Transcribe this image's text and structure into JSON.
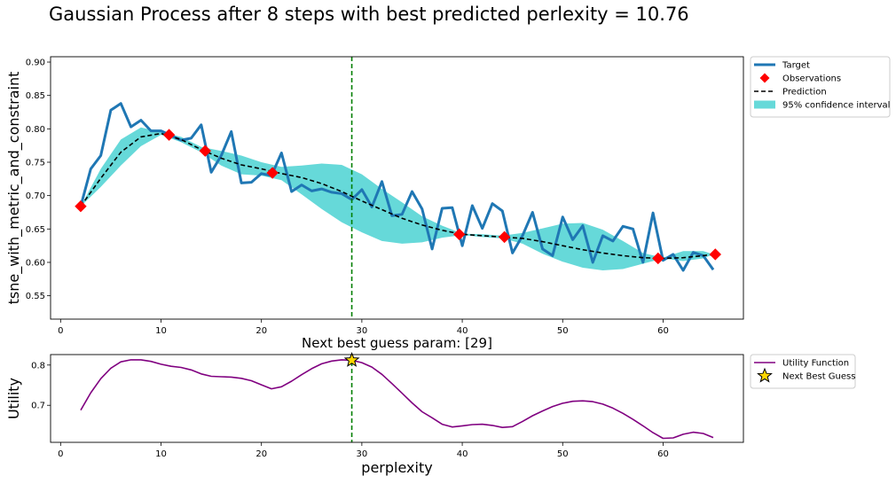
{
  "figure": {
    "title": "Gaussian Process after 8 steps with best predicted perlexity = 10.76"
  },
  "chart_data": [
    {
      "type": "line",
      "id": "gp-plot",
      "xlabel": "",
      "ylabel": "tsne_with_metric_and_constraint",
      "xlim": [
        -1,
        68
      ],
      "ylim": [
        0.515,
        0.908
      ],
      "xticks": [
        0,
        10,
        20,
        30,
        40,
        50,
        60
      ],
      "yticks": [
        0.55,
        0.6,
        0.65,
        0.7,
        0.75,
        0.8,
        0.85,
        0.9
      ],
      "legend_position": "outside-upper-right",
      "next_guess_x": 29,
      "series": [
        {
          "name": "Target",
          "kind": "line",
          "color": "#1f77b4",
          "x": [
            2,
            3,
            4,
            5,
            6,
            7,
            8,
            9,
            10,
            11,
            12,
            13,
            14,
            15,
            16,
            17,
            18,
            19,
            20,
            21,
            22,
            23,
            24,
            25,
            26,
            27,
            28,
            29,
            30,
            31,
            32,
            33,
            34,
            35,
            36,
            37,
            38,
            39,
            40,
            41,
            42,
            43,
            44,
            45,
            46,
            47,
            48,
            49,
            50,
            51,
            52,
            53,
            54,
            55,
            56,
            57,
            58,
            59,
            60,
            61,
            62,
            63,
            64,
            65
          ],
          "y": [
            0.684,
            0.74,
            0.76,
            0.828,
            0.838,
            0.803,
            0.813,
            0.797,
            0.797,
            0.79,
            0.783,
            0.786,
            0.806,
            0.735,
            0.76,
            0.796,
            0.719,
            0.72,
            0.733,
            0.73,
            0.764,
            0.706,
            0.716,
            0.707,
            0.71,
            0.705,
            0.703,
            0.694,
            0.709,
            0.683,
            0.721,
            0.67,
            0.672,
            0.706,
            0.68,
            0.62,
            0.681,
            0.682,
            0.625,
            0.685,
            0.651,
            0.688,
            0.677,
            0.614,
            0.64,
            0.675,
            0.62,
            0.61,
            0.668,
            0.634,
            0.655,
            0.6,
            0.64,
            0.632,
            0.654,
            0.65,
            0.6,
            0.674,
            0.603,
            0.612,
            0.588,
            0.615,
            0.61,
            0.589
          ]
        },
        {
          "name": "Observations",
          "kind": "marker",
          "marker": "diamond",
          "color": "#ff0000",
          "x": [
            2,
            10.8,
            14.4,
            21.1,
            39.7,
            44.2,
            59.5,
            65.2
          ],
          "y": [
            0.684,
            0.791,
            0.767,
            0.734,
            0.642,
            0.638,
            0.606,
            0.612
          ]
        },
        {
          "name": "Prediction",
          "kind": "dashed-line",
          "color": "#000000",
          "x": [
            2,
            4,
            6,
            8,
            10,
            12,
            14,
            16,
            18,
            20,
            22,
            24,
            26,
            28,
            30,
            32,
            34,
            36,
            38,
            40,
            42,
            44,
            46,
            48,
            50,
            52,
            54,
            56,
            58,
            60,
            62,
            64,
            65
          ],
          "y": [
            0.684,
            0.726,
            0.765,
            0.788,
            0.793,
            0.784,
            0.769,
            0.756,
            0.746,
            0.74,
            0.733,
            0.727,
            0.718,
            0.706,
            0.692,
            0.679,
            0.666,
            0.656,
            0.648,
            0.642,
            0.64,
            0.638,
            0.636,
            0.631,
            0.625,
            0.619,
            0.614,
            0.61,
            0.607,
            0.606,
            0.607,
            0.61,
            0.612
          ]
        },
        {
          "name": "95% confidence interval",
          "kind": "band",
          "color": "#66d9d9",
          "x": [
            2,
            4,
            6,
            8,
            10,
            12,
            14,
            16,
            18,
            20,
            22,
            24,
            26,
            28,
            30,
            32,
            34,
            36,
            38,
            40,
            42,
            44,
            46,
            48,
            50,
            52,
            54,
            56,
            58,
            60,
            62,
            64,
            65
          ],
          "lower": [
            0.684,
            0.713,
            0.745,
            0.774,
            0.791,
            0.78,
            0.765,
            0.745,
            0.732,
            0.73,
            0.723,
            0.702,
            0.68,
            0.66,
            0.645,
            0.632,
            0.628,
            0.63,
            0.637,
            0.641,
            0.638,
            0.636,
            0.628,
            0.613,
            0.601,
            0.592,
            0.588,
            0.59,
            0.598,
            0.606,
            0.602,
            0.606,
            0.612
          ],
          "upper": [
            0.684,
            0.74,
            0.784,
            0.802,
            0.795,
            0.788,
            0.773,
            0.767,
            0.76,
            0.75,
            0.743,
            0.745,
            0.748,
            0.746,
            0.732,
            0.71,
            0.69,
            0.669,
            0.655,
            0.643,
            0.642,
            0.64,
            0.644,
            0.651,
            0.658,
            0.659,
            0.649,
            0.632,
            0.614,
            0.607,
            0.617,
            0.617,
            0.612
          ]
        }
      ]
    },
    {
      "type": "line",
      "id": "utility-plot",
      "title": "Next best guess param: [29]",
      "xlabel": "perplexity",
      "ylabel": "Utility",
      "xlim": [
        -1,
        68
      ],
      "ylim": [
        0.608,
        0.826
      ],
      "xticks": [
        0,
        10,
        20,
        30,
        40,
        50,
        60
      ],
      "yticks": [
        0.7,
        0.8
      ],
      "legend_position": "outside-upper-right",
      "next_guess_x": 29,
      "series": [
        {
          "name": "Utility Function",
          "kind": "line",
          "color": "#800080",
          "x": [
            2,
            3,
            4,
            5,
            6,
            7,
            8,
            9,
            10,
            11,
            12,
            13,
            14,
            15,
            16,
            17,
            18,
            19,
            20,
            21,
            22,
            23,
            24,
            25,
            26,
            27,
            28,
            29,
            30,
            31,
            32,
            33,
            34,
            35,
            36,
            37,
            38,
            39,
            40,
            41,
            42,
            43,
            44,
            45,
            46,
            47,
            48,
            49,
            50,
            51,
            52,
            53,
            54,
            55,
            56,
            57,
            58,
            59,
            60,
            61,
            62,
            63,
            64,
            65
          ],
          "y": [
            0.688,
            0.731,
            0.766,
            0.792,
            0.808,
            0.813,
            0.813,
            0.809,
            0.802,
            0.797,
            0.794,
            0.788,
            0.778,
            0.772,
            0.771,
            0.77,
            0.767,
            0.761,
            0.751,
            0.741,
            0.746,
            0.76,
            0.776,
            0.791,
            0.803,
            0.81,
            0.813,
            0.812,
            0.806,
            0.795,
            0.777,
            0.754,
            0.73,
            0.706,
            0.684,
            0.669,
            0.653,
            0.646,
            0.649,
            0.652,
            0.653,
            0.65,
            0.645,
            0.647,
            0.66,
            0.674,
            0.686,
            0.697,
            0.705,
            0.71,
            0.711,
            0.709,
            0.703,
            0.693,
            0.68,
            0.665,
            0.649,
            0.632,
            0.618,
            0.619,
            0.628,
            0.633,
            0.63,
            0.62
          ]
        },
        {
          "name": "Next Best Guess",
          "kind": "marker",
          "marker": "star",
          "color": "#ffd700",
          "x": [
            29
          ],
          "y": [
            0.812
          ]
        }
      ]
    }
  ]
}
